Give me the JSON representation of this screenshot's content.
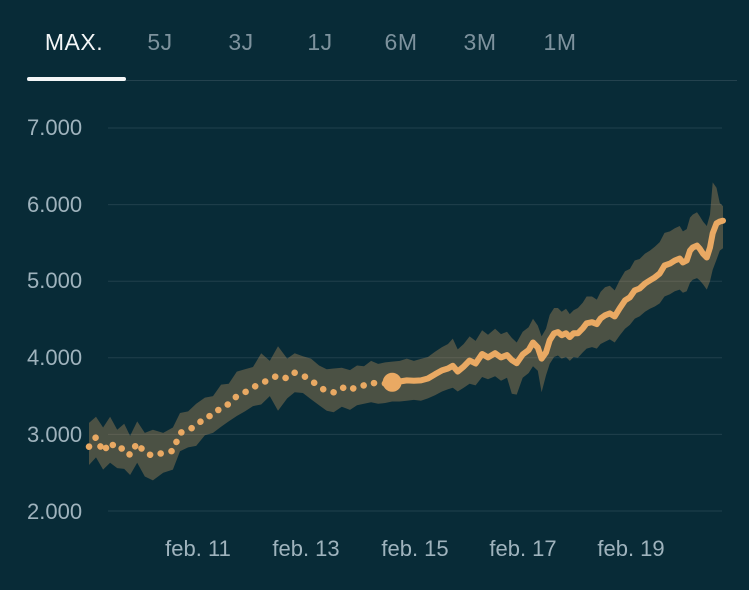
{
  "tabs": [
    {
      "label": "MAX.",
      "active": true
    },
    {
      "label": "5J",
      "active": false
    },
    {
      "label": "3J",
      "active": false
    },
    {
      "label": "1J",
      "active": false
    },
    {
      "label": "6M",
      "active": false
    },
    {
      "label": "3M",
      "active": false
    },
    {
      "label": "1M",
      "active": false
    }
  ],
  "colors": {
    "background": "#082b37",
    "tab_active": "#f3f6f7",
    "tab_inactive": "#7d929d",
    "axis_label": "#9fb3bd",
    "grid_line": "#20404c",
    "divider": "#24424e",
    "series_line": "#e9a963"
  },
  "chart_data": {
    "type": "line",
    "title": "",
    "grid": "horizontal-only",
    "legend": "none",
    "x_axis": {
      "ticks": [
        "feb. 11",
        "feb. 13",
        "feb. 15",
        "feb. 17",
        "feb. 19"
      ],
      "tick_years": [
        2011.08,
        2013.08,
        2015.08,
        2017.08,
        2019.08
      ],
      "range_years": [
        2009.07,
        2020.78
      ]
    },
    "y_axis": {
      "ticks": [
        "7.000",
        "6.000",
        "5.000",
        "4.000",
        "3.000",
        "2.000"
      ],
      "tick_values": [
        7000,
        6000,
        5000,
        4000,
        3000,
        2000
      ],
      "range": [
        2000,
        7000
      ]
    },
    "series": {
      "band_opacity": 0.3,
      "solid_from_year": 2014.67,
      "marker": {
        "year": 2014.67,
        "value": 3680
      },
      "points_format": [
        "year",
        "value",
        "band_low",
        "band_high"
      ],
      "points": [
        [
          2009.07,
          2840,
          2600,
          3150
        ],
        [
          2009.2,
          2965,
          2700,
          3230
        ],
        [
          2009.33,
          2770,
          2540,
          3090
        ],
        [
          2009.46,
          2900,
          2630,
          3230
        ],
        [
          2009.59,
          2800,
          2560,
          3060
        ],
        [
          2009.72,
          2825,
          2550,
          3140
        ],
        [
          2009.83,
          2730,
          2470,
          2980
        ],
        [
          2009.96,
          2890,
          2630,
          3170
        ],
        [
          2010.1,
          2760,
          2450,
          3020
        ],
        [
          2010.25,
          2720,
          2400,
          3060
        ],
        [
          2010.44,
          2760,
          2500,
          3020
        ],
        [
          2010.62,
          2785,
          2540,
          3090
        ],
        [
          2010.75,
          3020,
          2780,
          3280
        ],
        [
          2010.9,
          3060,
          2830,
          3300
        ],
        [
          2011.05,
          3110,
          2850,
          3400
        ],
        [
          2011.21,
          3225,
          2990,
          3480
        ],
        [
          2011.36,
          3250,
          3020,
          3500
        ],
        [
          2011.51,
          3355,
          3100,
          3650
        ],
        [
          2011.65,
          3395,
          3170,
          3660
        ],
        [
          2011.8,
          3500,
          3240,
          3820
        ],
        [
          2011.95,
          3550,
          3300,
          3850
        ],
        [
          2012.1,
          3615,
          3370,
          3880
        ],
        [
          2012.25,
          3665,
          3390,
          4060
        ],
        [
          2012.41,
          3720,
          3500,
          3960
        ],
        [
          2012.56,
          3770,
          3310,
          4150
        ],
        [
          2012.73,
          3730,
          3470,
          3990
        ],
        [
          2012.87,
          3805,
          3550,
          4060
        ],
        [
          2013.02,
          3770,
          3540,
          4020
        ],
        [
          2013.17,
          3705,
          3460,
          3990
        ],
        [
          2013.32,
          3625,
          3380,
          3900
        ],
        [
          2013.46,
          3560,
          3310,
          3850
        ],
        [
          2013.59,
          3550,
          3290,
          3860
        ],
        [
          2013.74,
          3615,
          3360,
          3870
        ],
        [
          2013.89,
          3575,
          3320,
          3840
        ],
        [
          2014.02,
          3630,
          3380,
          3900
        ],
        [
          2014.15,
          3640,
          3400,
          3890
        ],
        [
          2014.28,
          3680,
          3420,
          3960
        ],
        [
          2014.41,
          3655,
          3400,
          3920
        ],
        [
          2014.54,
          3665,
          3410,
          3940
        ],
        [
          2014.67,
          3680,
          3430,
          3950
        ],
        [
          2014.81,
          3690,
          3430,
          3960
        ],
        [
          2014.94,
          3705,
          3440,
          3990
        ],
        [
          2015.07,
          3700,
          3450,
          3960
        ],
        [
          2015.2,
          3705,
          3440,
          3985
        ],
        [
          2015.33,
          3730,
          3470,
          4010
        ],
        [
          2015.46,
          3785,
          3510,
          4080
        ],
        [
          2015.59,
          3835,
          3560,
          4140
        ],
        [
          2015.7,
          3860,
          3590,
          4180
        ],
        [
          2015.79,
          3895,
          3610,
          4250
        ],
        [
          2015.88,
          3820,
          3560,
          4110
        ],
        [
          2015.99,
          3885,
          3610,
          4180
        ],
        [
          2016.1,
          3965,
          3660,
          4280
        ],
        [
          2016.21,
          3925,
          3640,
          4220
        ],
        [
          2016.33,
          4050,
          3750,
          4360
        ],
        [
          2016.44,
          4005,
          3720,
          4300
        ],
        [
          2016.57,
          4060,
          3760,
          4380
        ],
        [
          2016.68,
          4005,
          3700,
          4310
        ],
        [
          2016.79,
          4035,
          3740,
          4340
        ],
        [
          2016.88,
          3970,
          3530,
          4260
        ],
        [
          2016.97,
          3930,
          3520,
          4200
        ],
        [
          2017.08,
          4045,
          3740,
          4340
        ],
        [
          2017.19,
          4100,
          3800,
          4400
        ],
        [
          2017.27,
          4200,
          3890,
          4510
        ],
        [
          2017.36,
          4135,
          3830,
          4420
        ],
        [
          2017.43,
          3990,
          3550,
          4280
        ],
        [
          2017.51,
          4070,
          3770,
          4380
        ],
        [
          2017.58,
          4230,
          3920,
          4560
        ],
        [
          2017.66,
          4320,
          4010,
          4650
        ],
        [
          2017.73,
          4335,
          4030,
          4650
        ],
        [
          2017.8,
          4295,
          3990,
          4600
        ],
        [
          2017.88,
          4320,
          4010,
          4640
        ],
        [
          2017.95,
          4270,
          3960,
          4570
        ],
        [
          2018.02,
          4320,
          4010,
          4620
        ],
        [
          2018.1,
          4320,
          4000,
          4650
        ],
        [
          2018.19,
          4385,
          4070,
          4720
        ],
        [
          2018.26,
          4450,
          4120,
          4800
        ],
        [
          2018.36,
          4465,
          4140,
          4800
        ],
        [
          2018.45,
          4440,
          4120,
          4760
        ],
        [
          2018.52,
          4515,
          4180,
          4860
        ],
        [
          2018.6,
          4555,
          4210,
          4920
        ],
        [
          2018.69,
          4580,
          4240,
          4940
        ],
        [
          2018.78,
          4540,
          4200,
          4880
        ],
        [
          2018.87,
          4645,
          4290,
          5010
        ],
        [
          2018.97,
          4750,
          4380,
          5130
        ],
        [
          2019.06,
          4790,
          4430,
          5160
        ],
        [
          2019.15,
          4880,
          4510,
          5270
        ],
        [
          2019.24,
          4905,
          4540,
          5290
        ],
        [
          2019.34,
          4970,
          4600,
          5360
        ],
        [
          2019.43,
          5010,
          4640,
          5400
        ],
        [
          2019.52,
          5050,
          4670,
          5450
        ],
        [
          2019.61,
          5100,
          4710,
          5510
        ],
        [
          2019.7,
          5205,
          4800,
          5630
        ],
        [
          2019.8,
          5230,
          4830,
          5650
        ],
        [
          2019.89,
          5270,
          4870,
          5690
        ],
        [
          2019.98,
          5295,
          4890,
          5720
        ],
        [
          2020.04,
          5245,
          4850,
          5650
        ],
        [
          2020.11,
          5270,
          4870,
          5680
        ],
        [
          2020.17,
          5400,
          4980,
          5830
        ],
        [
          2020.22,
          5440,
          5020,
          5870
        ],
        [
          2020.3,
          5465,
          5040,
          5900
        ],
        [
          2020.35,
          5425,
          5010,
          5850
        ],
        [
          2020.41,
          5360,
          4960,
          5780
        ],
        [
          2020.48,
          5310,
          4890,
          5720
        ],
        [
          2020.54,
          5440,
          5000,
          5870
        ],
        [
          2020.59,
          5625,
          5150,
          6290
        ],
        [
          2020.66,
          5755,
          5280,
          6220
        ],
        [
          2020.72,
          5780,
          5400,
          6020
        ],
        [
          2020.78,
          5790,
          5430,
          5980
        ]
      ]
    }
  }
}
